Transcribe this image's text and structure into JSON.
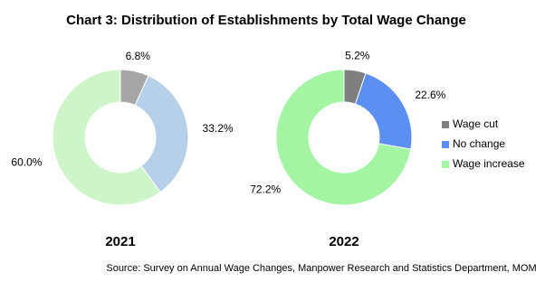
{
  "title": "Chart 3: Distribution of Establishments by Total Wage Change",
  "source": "Source: Survey on Annual Wage Changes, Manpower Research and Statistics Department, MOM",
  "chart_data": [
    {
      "type": "pie",
      "subtitle": "2021",
      "values": [
        6.8,
        33.2,
        60.0
      ],
      "value_labels": [
        "6.8%",
        "33.2%",
        "60.0%"
      ],
      "colors": [
        "#a6a6a6",
        "#b7d0ea",
        "#cdf5c9"
      ],
      "legend": false
    },
    {
      "type": "pie",
      "subtitle": "2022",
      "categories": [
        "Wage cut",
        "No change",
        "Wage increase"
      ],
      "values": [
        5.2,
        22.6,
        72.2
      ],
      "value_labels": [
        "5.2%",
        "22.6%",
        "72.2%"
      ],
      "colors": [
        "#7f7f7f",
        "#5b8ff2",
        "#a3f5a3"
      ],
      "legend": "right"
    }
  ]
}
